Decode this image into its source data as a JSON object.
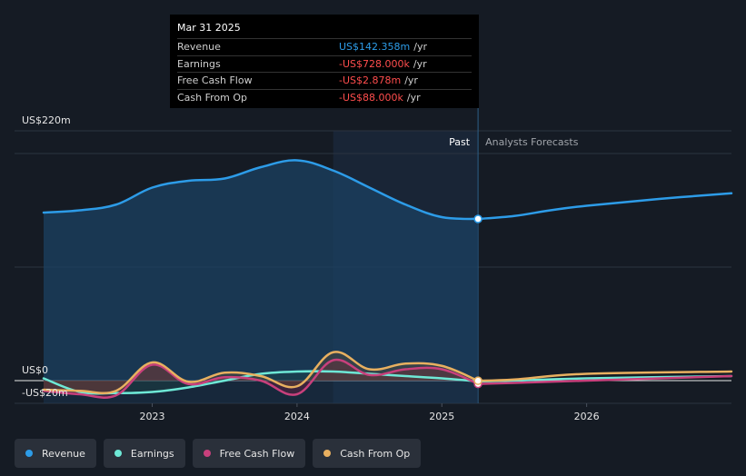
{
  "colors": {
    "revenue": "#2d9ce8",
    "earnings": "#6ee8d6",
    "fcf": "#c8407c",
    "cfo": "#e8b060",
    "past_band": "#1b2a3c",
    "negative": "#ff4d4d",
    "text": "#e6e6e6",
    "muted": "#a0a4aa"
  },
  "tooltip": {
    "date": "Mar 31 2025",
    "rows": [
      {
        "label": "Revenue",
        "value": "US$142.358m",
        "unit": "/yr"
      },
      {
        "label": "Earnings",
        "value": "-US$728.000k",
        "unit": "/yr"
      },
      {
        "label": "Free Cash Flow",
        "value": "-US$2.878m",
        "unit": "/yr"
      },
      {
        "label": "Cash From Op",
        "value": "-US$88.000k",
        "unit": "/yr"
      }
    ]
  },
  "legend": [
    {
      "name": "Revenue",
      "color_key": "revenue"
    },
    {
      "name": "Earnings",
      "color_key": "earnings"
    },
    {
      "name": "Free Cash Flow",
      "color_key": "fcf"
    },
    {
      "name": "Cash From Op",
      "color_key": "cfo"
    }
  ],
  "chart_data": {
    "type": "line",
    "title": "",
    "y_tick_labels": [
      "US$220m",
      "US$0",
      "-US$20m"
    ],
    "ylim": [
      -20,
      220
    ],
    "xlim": [
      2022.25,
      2027.0
    ],
    "x_ticks": [
      {
        "value": 2023,
        "label": "2023"
      },
      {
        "value": 2024,
        "label": "2024"
      },
      {
        "value": 2025,
        "label": "2025"
      },
      {
        "value": 2026,
        "label": "2026"
      }
    ],
    "divider_x": 2025.25,
    "highlight_x_range": [
      2024.25,
      2025.25
    ],
    "past_label": "Past",
    "forecast_label": "Analysts Forecasts",
    "series": [
      {
        "name": "Revenue",
        "color_key": "revenue",
        "points": [
          [
            2022.25,
            148
          ],
          [
            2022.5,
            150
          ],
          [
            2022.75,
            155
          ],
          [
            2023.0,
            170
          ],
          [
            2023.25,
            176
          ],
          [
            2023.5,
            178
          ],
          [
            2023.75,
            188
          ],
          [
            2024.0,
            194
          ],
          [
            2024.25,
            185
          ],
          [
            2024.5,
            170
          ],
          [
            2024.75,
            155
          ],
          [
            2025.0,
            144
          ],
          [
            2025.25,
            142.4
          ],
          [
            2025.5,
            145
          ],
          [
            2025.75,
            150
          ],
          [
            2026.0,
            154
          ],
          [
            2026.5,
            160
          ],
          [
            2027.0,
            165
          ]
        ],
        "forecast_from": 2025.25
      },
      {
        "name": "Earnings",
        "color_key": "earnings",
        "points": [
          [
            2022.25,
            2
          ],
          [
            2022.5,
            -10
          ],
          [
            2022.75,
            -11
          ],
          [
            2023.0,
            -10
          ],
          [
            2023.25,
            -6
          ],
          [
            2023.5,
            0
          ],
          [
            2023.75,
            6
          ],
          [
            2024.0,
            8
          ],
          [
            2024.25,
            8
          ],
          [
            2024.5,
            6
          ],
          [
            2024.75,
            4
          ],
          [
            2025.0,
            2
          ],
          [
            2025.25,
            -0.7
          ],
          [
            2025.5,
            0
          ],
          [
            2026.0,
            2
          ],
          [
            2027.0,
            4
          ]
        ],
        "forecast_from": 2025.25
      },
      {
        "name": "Free Cash Flow",
        "color_key": "fcf",
        "points": [
          [
            2022.25,
            -9
          ],
          [
            2022.5,
            -12
          ],
          [
            2022.75,
            -13
          ],
          [
            2023.0,
            14
          ],
          [
            2023.25,
            -3
          ],
          [
            2023.5,
            3
          ],
          [
            2023.75,
            0
          ],
          [
            2024.0,
            -12
          ],
          [
            2024.25,
            18
          ],
          [
            2024.5,
            5
          ],
          [
            2024.75,
            10
          ],
          [
            2025.0,
            10
          ],
          [
            2025.25,
            -2.9
          ],
          [
            2025.5,
            -2
          ],
          [
            2026.0,
            0
          ],
          [
            2027.0,
            4
          ]
        ],
        "forecast_from": 2025.25
      },
      {
        "name": "Cash From Op",
        "color_key": "cfo",
        "points": [
          [
            2022.25,
            -8
          ],
          [
            2022.5,
            -9
          ],
          [
            2022.75,
            -9
          ],
          [
            2023.0,
            16
          ],
          [
            2023.25,
            -1
          ],
          [
            2023.5,
            7
          ],
          [
            2023.75,
            4
          ],
          [
            2024.0,
            -5
          ],
          [
            2024.25,
            25
          ],
          [
            2024.5,
            10
          ],
          [
            2024.75,
            15
          ],
          [
            2025.0,
            13
          ],
          [
            2025.25,
            -0.1
          ],
          [
            2025.5,
            1
          ],
          [
            2026.0,
            6
          ],
          [
            2027.0,
            8
          ]
        ],
        "forecast_from": 2025.25
      }
    ]
  }
}
